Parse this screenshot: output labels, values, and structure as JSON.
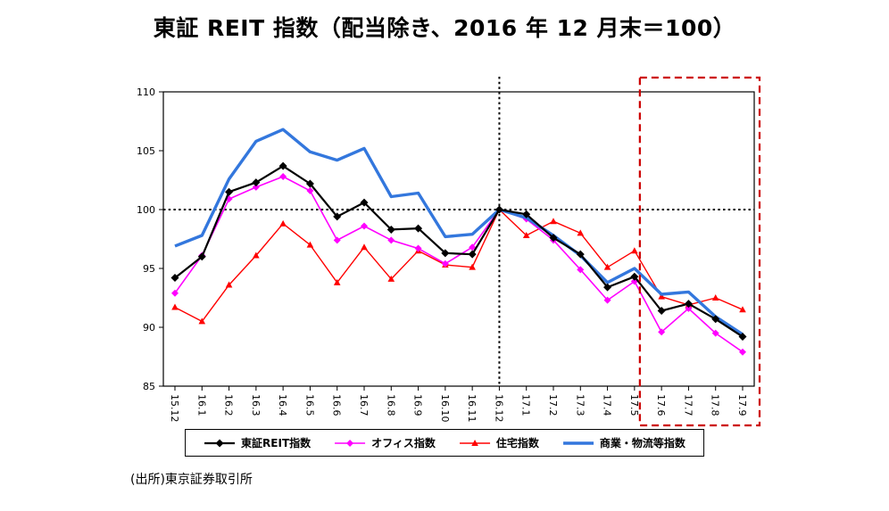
{
  "title": "東証 REIT 指数（配当除き、2016 年 12 月末＝100）",
  "source": "(出所)東京証券取引所",
  "chart_data": {
    "type": "line",
    "title": "東証 REIT 指数（配当除き、2016 年 12 月末＝100）",
    "ylim": [
      85,
      110
    ],
    "yticks": [
      85,
      90,
      95,
      100,
      105,
      110
    ],
    "grid": false,
    "legend_position": "bottom",
    "categories": [
      "15.12",
      "16.1",
      "16.2",
      "16.3",
      "16.4",
      "16.5",
      "16.6",
      "16.7",
      "16.8",
      "16.9",
      "16.10",
      "16.11",
      "16.12",
      "17.1",
      "17.2",
      "17.3",
      "17.4",
      "17.5",
      "17.6",
      "17.7",
      "17.8",
      "17.9"
    ],
    "series": [
      {
        "key": "tse-reit",
        "name": "東証REIT指数",
        "color": "#000000",
        "marker": "diamond",
        "values": [
          94.2,
          96.0,
          101.5,
          102.3,
          103.7,
          102.2,
          99.4,
          100.6,
          98.3,
          98.4,
          96.3,
          96.2,
          100.0,
          99.6,
          97.6,
          96.2,
          93.4,
          94.3,
          91.4,
          92.0,
          90.7,
          89.2
        ]
      },
      {
        "key": "office",
        "name": "オフィス指数",
        "color": "#FF00FF",
        "marker": "diamond",
        "values": [
          92.9,
          96.1,
          100.9,
          101.9,
          102.8,
          101.6,
          97.4,
          98.6,
          97.4,
          96.7,
          95.4,
          96.8,
          100.0,
          99.2,
          97.4,
          94.9,
          92.3,
          93.9,
          89.6,
          91.6,
          89.5,
          87.9
        ]
      },
      {
        "key": "residential",
        "name": "住宅指数",
        "color": "#FF0000",
        "marker": "triangle",
        "values": [
          91.7,
          90.5,
          93.6,
          96.1,
          98.8,
          97.0,
          93.8,
          96.8,
          94.1,
          96.5,
          95.3,
          95.1,
          100.0,
          97.8,
          99.0,
          98.0,
          95.1,
          96.5,
          92.6,
          91.9,
          92.5,
          91.5
        ]
      },
      {
        "key": "commercial",
        "name": "商業・物流等指数",
        "color": "#3377DD",
        "marker": "none",
        "values": [
          96.9,
          97.8,
          102.6,
          105.8,
          106.8,
          104.9,
          104.2,
          105.2,
          101.1,
          101.4,
          97.7,
          97.9,
          100.0,
          99.3,
          97.8,
          96.1,
          93.8,
          95.0,
          92.8,
          93.0,
          90.9,
          89.4
        ]
      }
    ],
    "annotations": {
      "baseline_value": 100,
      "vline_category": "16.12",
      "highlight_from": "17.6",
      "highlight_to": "17.9",
      "highlight_color": "#CC0000"
    }
  }
}
